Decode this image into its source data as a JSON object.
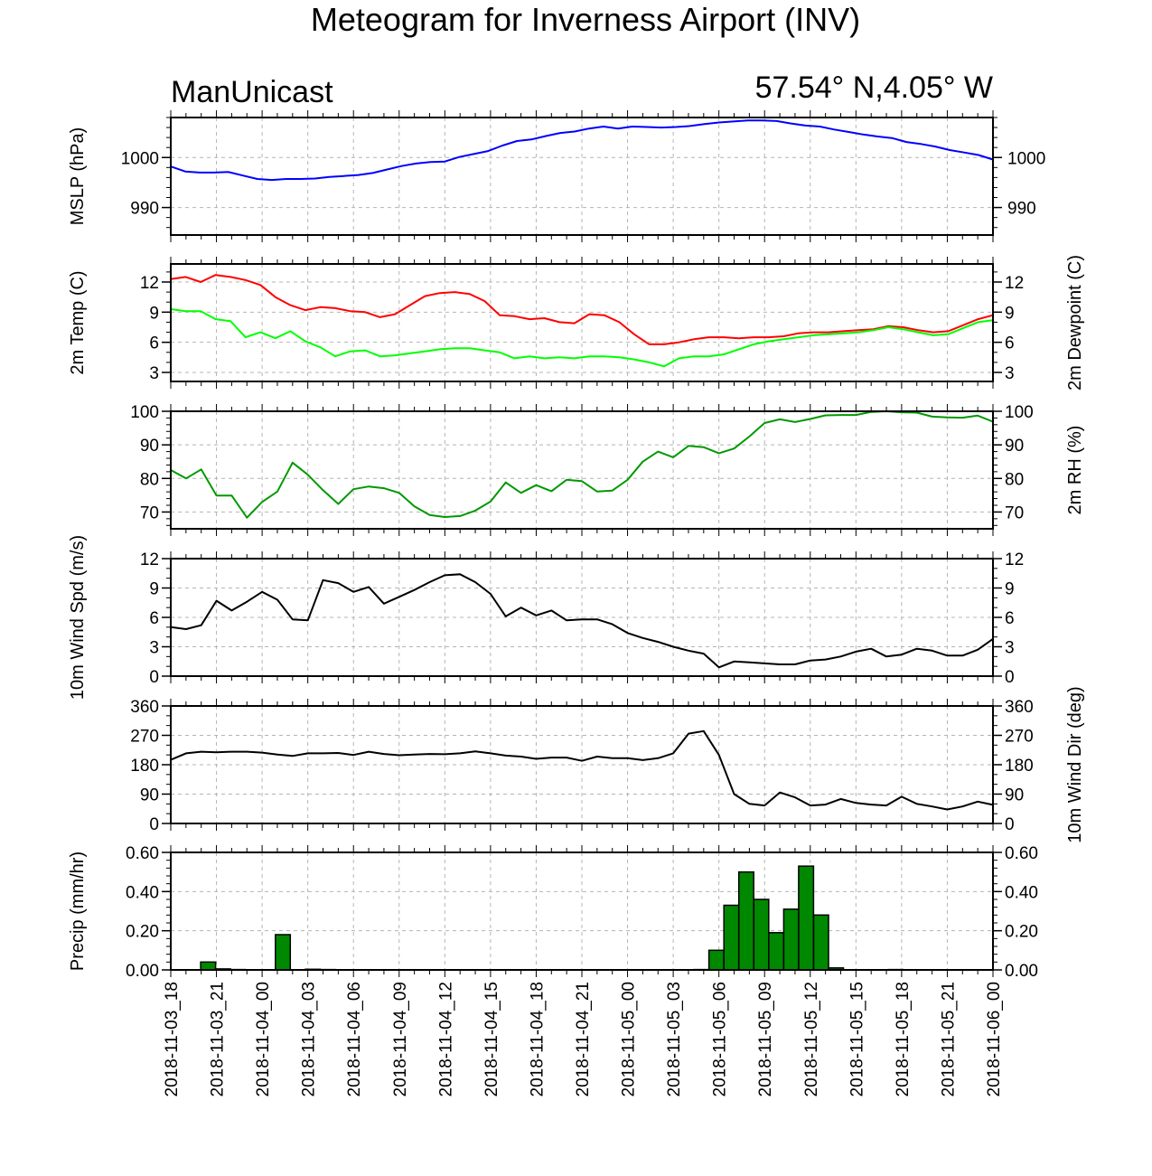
{
  "header": {
    "title": "Meteogram for Inverness Airport (INV)",
    "model": "ManUnicast",
    "location": "57.54° N,4.05° W"
  },
  "chart_data": {
    "type": "line",
    "x_tick_labels": [
      "2018-11-03_18",
      "2018-11-03_21",
      "2018-11-04_00",
      "2018-11-04_03",
      "2018-11-04_06",
      "2018-11-04_09",
      "2018-11-04_12",
      "2018-11-04_15",
      "2018-11-04_18",
      "2018-11-04_21",
      "2018-11-05_00",
      "2018-11-05_03",
      "2018-11-05_06",
      "2018-11-05_09",
      "2018-11-05_12",
      "2018-11-05_15",
      "2018-11-05_18",
      "2018-11-05_21",
      "2018-11-06_00"
    ],
    "x_start_hour": 18,
    "x_end_hour": 72,
    "grid": true,
    "panels": [
      {
        "id": "mslp",
        "ylabel_left": "MSLP (hPa)",
        "ylabel_right": "",
        "ylim": [
          984.5,
          1008
        ],
        "left_ticks": [
          990,
          1000
        ],
        "right_ticks": [
          990,
          1000
        ],
        "right_tick_labels_inside": true,
        "minor_step": 2,
        "series": [
          {
            "type": "line",
            "color": "#0000ff",
            "values": [
              998.2,
              997.2,
              997.0,
              997.0,
              997.1,
              996.4,
              995.7,
              995.5,
              995.7,
              995.7,
              995.8,
              996.1,
              996.3,
              996.5,
              996.9,
              997.6,
              998.3,
              998.8,
              999.1,
              999.2,
              1000.1,
              1000.7,
              1001.3,
              1002.4,
              1003.3,
              1003.6,
              1004.3,
              1004.9,
              1005.2,
              1005.8,
              1006.2,
              1005.8,
              1006.2,
              1006.1,
              1006.0,
              1006.1,
              1006.3,
              1006.7,
              1007.0,
              1007.2,
              1007.4,
              1007.4,
              1007.3,
              1006.8,
              1006.4,
              1006.2,
              1005.6,
              1005.1,
              1004.6,
              1004.2,
              1003.9,
              1003.1,
              1002.7,
              1002.2,
              1001.5,
              1001.0,
              1000.5,
              999.6
            ]
          }
        ]
      },
      {
        "id": "temp",
        "ylabel_left": "2m Temp (C)",
        "ylabel_right": "2m Dewpoint (C)",
        "ylim": [
          2.1,
          13.8
        ],
        "left_ticks": [
          3,
          6,
          9,
          12
        ],
        "right_ticks": [
          3,
          6,
          9,
          12
        ],
        "minor_step": 1,
        "series": [
          {
            "type": "line",
            "color": "#ff0000",
            "values": [
              12.3,
              12.5,
              12.0,
              12.7,
              12.5,
              12.2,
              11.7,
              10.5,
              9.7,
              9.2,
              9.5,
              9.4,
              9.1,
              9.0,
              8.5,
              8.8,
              9.7,
              10.6,
              10.9,
              11.0,
              10.8,
              10.1,
              8.7,
              8.6,
              8.3,
              8.4,
              8.0,
              7.9,
              8.8,
              8.7,
              8.0,
              6.8,
              5.8,
              5.8,
              6.0,
              6.3,
              6.5,
              6.5,
              6.4,
              6.5,
              6.5,
              6.6,
              6.9,
              7.0,
              7.0,
              7.1,
              7.2,
              7.3,
              7.6,
              7.5,
              7.2,
              7.0,
              7.1,
              7.7,
              8.3,
              8.7
            ]
          },
          {
            "type": "line",
            "color": "#00ff00",
            "values": [
              9.3,
              9.1,
              9.1,
              8.3,
              8.1,
              6.5,
              7.0,
              6.4,
              7.1,
              6.1,
              5.5,
              4.6,
              5.1,
              5.2,
              4.6,
              4.7,
              4.9,
              5.1,
              5.3,
              5.4,
              5.4,
              5.2,
              5.0,
              4.4,
              4.6,
              4.4,
              4.5,
              4.4,
              4.6,
              4.6,
              4.5,
              4.3,
              4.0,
              3.6,
              4.4,
              4.6,
              4.6,
              4.8,
              5.3,
              5.8,
              6.1,
              6.3,
              6.5,
              6.7,
              6.8,
              6.9,
              7.0,
              7.2,
              7.5,
              7.3,
              7.0,
              6.7,
              6.8,
              7.4,
              8.0,
              8.2
            ]
          }
        ]
      },
      {
        "id": "rh",
        "ylabel_left": "",
        "ylabel_right": "2m RH (%)",
        "ylim": [
          65,
          100
        ],
        "left_ticks": [
          70,
          80,
          90,
          100
        ],
        "right_ticks": [
          70,
          80,
          90,
          100
        ],
        "minor_step": 2,
        "series": [
          {
            "type": "line",
            "color": "#009900",
            "values": [
              82.5,
              80.0,
              82.7,
              74.9,
              74.9,
              68.3,
              73.0,
              76.1,
              84.7,
              81.1,
              76.5,
              72.4,
              76.8,
              77.6,
              77.1,
              75.7,
              71.7,
              69.1,
              68.5,
              68.8,
              70.4,
              73.1,
              78.8,
              75.7,
              78.0,
              76.2,
              79.6,
              79.2,
              76.1,
              76.4,
              79.6,
              85.0,
              88.0,
              86.3,
              89.7,
              89.3,
              87.5,
              88.9,
              92.5,
              96.5,
              97.6,
              96.8,
              97.7,
              98.8,
              98.9,
              98.9,
              99.8,
              100.0,
              99.7,
              99.6,
              98.4,
              98.2,
              98.1,
              98.7,
              96.9
            ]
          }
        ]
      },
      {
        "id": "wind_speed",
        "ylabel_left": "10m Wind Spd (m/s)",
        "ylabel_right": "",
        "ylim": [
          0,
          12
        ],
        "left_ticks": [
          0,
          3,
          6,
          9,
          12
        ],
        "right_ticks": [
          0,
          3,
          6,
          9,
          12
        ],
        "minor_step": 1,
        "series": [
          {
            "type": "line",
            "color": "#000000",
            "values": [
              5.0,
              4.8,
              5.2,
              7.7,
              6.7,
              7.6,
              8.6,
              7.8,
              5.8,
              5.7,
              9.8,
              9.5,
              8.6,
              9.1,
              7.4,
              8.1,
              8.8,
              9.6,
              10.3,
              10.4,
              9.6,
              8.4,
              6.1,
              7.0,
              6.2,
              6.7,
              5.7,
              5.8,
              5.8,
              5.3,
              4.4,
              3.9,
              3.5,
              3.0,
              2.6,
              2.3,
              0.9,
              1.5,
              1.4,
              1.3,
              1.2,
              1.2,
              1.6,
              1.7,
              2.0,
              2.5,
              2.8,
              2.0,
              2.2,
              2.8,
              2.6,
              2.1,
              2.1,
              2.7,
              3.8
            ]
          }
        ]
      },
      {
        "id": "wind_dir",
        "ylabel_left": "",
        "ylabel_right": "10m Wind Dir (deg)",
        "ylim": [
          0,
          360
        ],
        "left_ticks": [
          0,
          90,
          180,
          270,
          360
        ],
        "right_ticks": [
          0,
          90,
          180,
          270,
          360
        ],
        "minor_step": 30,
        "series": [
          {
            "type": "line",
            "color": "#000000",
            "values": [
              195,
              215,
              220,
              218,
              220,
              220,
              217,
              211,
              207,
              215,
              215,
              216,
              210,
              220,
              213,
              209,
              211,
              213,
              212,
              215,
              221,
              215,
              208,
              205,
              198,
              202,
              202,
              192,
              205,
              200,
              200,
              194,
              200,
              215,
              275,
              283,
              210,
              90,
              60,
              55,
              95,
              80,
              55,
              58,
              75,
              63,
              58,
              55,
              82,
              60,
              52,
              43,
              52,
              67,
              57
            ]
          }
        ]
      },
      {
        "id": "precip",
        "ylabel_left": "Precip (mm/hr)",
        "ylabel_right": "",
        "ylim": [
          0,
          0.6
        ],
        "left_ticks": [
          0.0,
          0.2,
          0.4,
          0.6
        ],
        "right_ticks": [
          0.0,
          0.2,
          0.4,
          0.6
        ],
        "tick_decimals": 2,
        "minor_step": 0.04,
        "series": [
          {
            "type": "bar",
            "color": "#008800",
            "values": [
              0,
              0,
              0.04,
              0.005,
              0.002,
              0,
              0,
              0.18,
              0,
              0.003,
              0.002,
              0,
              0,
              0,
              0,
              0,
              0,
              0,
              0,
              0,
              0,
              0,
              0,
              0,
              0,
              0,
              0,
              0,
              0,
              0,
              0,
              0,
              0,
              0,
              0,
              0.002,
              0.1,
              0.33,
              0.5,
              0.36,
              0.19,
              0.31,
              0.53,
              0.28,
              0.01,
              0,
              0,
              0,
              0.002,
              0,
              0,
              0,
              0,
              0,
              0
            ]
          }
        ]
      }
    ]
  }
}
